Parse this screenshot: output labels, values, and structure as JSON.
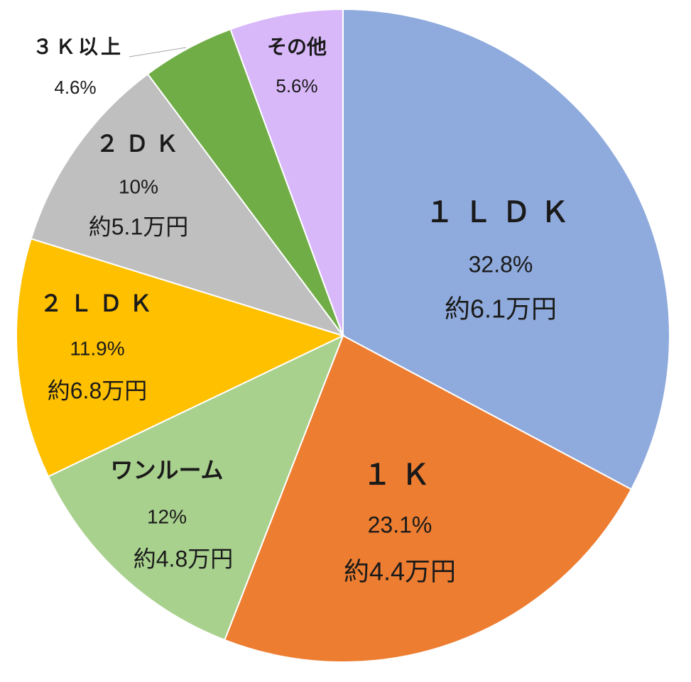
{
  "chart_data": {
    "type": "pie",
    "start": "12 o'clock, clockwise",
    "slices": [
      {
        "name": "１ＬＤＫ",
        "value": 32.8,
        "pct_label": "32.8%",
        "rent_label": "約6.1万円",
        "color": "#8FAADC"
      },
      {
        "name": "１Ｋ",
        "value": 23.1,
        "pct_label": "23.1%",
        "rent_label": "約4.4万円",
        "color": "#ED7D31"
      },
      {
        "name": "ワンルーム",
        "value": 12,
        "pct_label": "12%",
        "rent_label": "約4.8万円",
        "color": "#A9D18E"
      },
      {
        "name": "２ＬＤＫ",
        "value": 11.9,
        "pct_label": "11.9%",
        "rent_label": "約6.8万円",
        "color": "#FFC000"
      },
      {
        "name": "２ＤＫ",
        "value": 10,
        "pct_label": "10%",
        "rent_label": "約5.1万円",
        "color": "#BFBFBF"
      },
      {
        "name": "３Ｋ以上",
        "value": 4.6,
        "pct_label": "4.6%",
        "color": "#70AD47"
      },
      {
        "name": "その他",
        "value": 5.6,
        "pct_label": "5.6%",
        "color": "#D9B8FA"
      }
    ]
  }
}
